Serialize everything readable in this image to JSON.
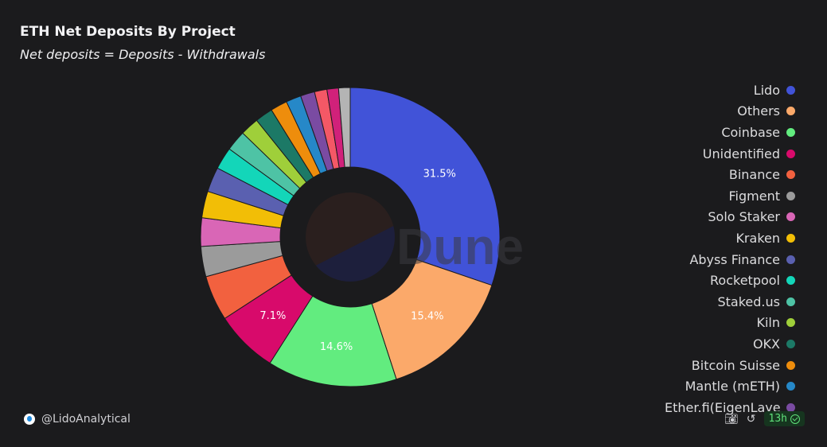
{
  "title": "ETH Net Deposits By Project",
  "subtitle": "Net deposits = Deposits - Withdrawals",
  "watermark": "Dune",
  "chart_data": {
    "type": "pie",
    "donut": true,
    "title": "ETH Net Deposits By Project",
    "subtitle": "Net deposits = Deposits - Withdrawals",
    "legend_position": "right",
    "slices": [
      {
        "label": "Lido",
        "value": 31.5,
        "color": "#4153d8",
        "show_label": true
      },
      {
        "label": "Others",
        "value": 15.4,
        "color": "#fba96a",
        "show_label": true
      },
      {
        "label": "Coinbase",
        "value": 14.6,
        "color": "#62ec7f",
        "show_label": true
      },
      {
        "label": "Unidentified",
        "value": 7.1,
        "color": "#d80a6b",
        "show_label": true
      },
      {
        "label": "Binance",
        "value": 5.1,
        "color": "#f2613f",
        "show_label": false
      },
      {
        "label": "Figment",
        "value": 3.4,
        "color": "#9b9b9b",
        "show_label": false
      },
      {
        "label": "Solo Staker",
        "value": 3.2,
        "color": "#d966b6",
        "show_label": false
      },
      {
        "label": "Kraken",
        "value": 3.0,
        "color": "#f2be06",
        "show_label": false
      },
      {
        "label": "Abyss Finance",
        "value": 2.8,
        "color": "#5a60b0",
        "show_label": false
      },
      {
        "label": "Rocketpool",
        "value": 2.5,
        "color": "#13d6b9",
        "show_label": false
      },
      {
        "label": "Staked.us",
        "value": 2.3,
        "color": "#4ec3a5",
        "show_label": false
      },
      {
        "label": "Kiln",
        "value": 2.1,
        "color": "#9fcf3a",
        "show_label": false
      },
      {
        "label": "OKX",
        "value": 2.0,
        "color": "#1c7966",
        "show_label": false
      },
      {
        "label": "Bitcoin Suisse",
        "value": 1.9,
        "color": "#ee8d0c",
        "show_label": false
      },
      {
        "label": "Mantle (mETH)",
        "value": 1.7,
        "color": "#2688c8",
        "show_label": false
      },
      {
        "label": "Ether.fi(EigenLayer)",
        "value": 1.6,
        "color": "#7a4ba2",
        "show_label": false
      },
      {
        "label": "",
        "value": 1.4,
        "color": "#f45866",
        "show_label": false
      },
      {
        "label": "",
        "value": 1.3,
        "color": "#d1217a",
        "show_label": false
      },
      {
        "label": "",
        "value": 1.3,
        "color": "#b4b4b4",
        "show_label": false
      }
    ]
  },
  "legend": [
    {
      "label": "Lido",
      "color": "#4153d8"
    },
    {
      "label": "Others",
      "color": "#fba96a"
    },
    {
      "label": "Coinbase",
      "color": "#62ec7f"
    },
    {
      "label": "Unidentified",
      "color": "#d80a6b"
    },
    {
      "label": "Binance",
      "color": "#f2613f"
    },
    {
      "label": "Figment",
      "color": "#9b9b9b"
    },
    {
      "label": "Solo Staker",
      "color": "#d966b6"
    },
    {
      "label": "Kraken",
      "color": "#f2be06"
    },
    {
      "label": "Abyss Finance",
      "color": "#5a60b0"
    },
    {
      "label": "Rocketpool",
      "color": "#13d6b9"
    },
    {
      "label": "Staked.us",
      "color": "#4ec3a5"
    },
    {
      "label": "Kiln",
      "color": "#9fcf3a"
    },
    {
      "label": "OKX",
      "color": "#1c7966"
    },
    {
      "label": "Bitcoin Suisse",
      "color": "#ee8d0c"
    },
    {
      "label": "Mantle (mETH)",
      "color": "#2688c8"
    },
    {
      "label": "Ether.fi(EigenLayer)",
      "color": "#7a4ba2"
    }
  ],
  "footer": {
    "author": "@LidoAnalytical",
    "refresh": "13h",
    "icons": [
      "camera-icon",
      "refresh-icon",
      "check-circle-icon"
    ]
  }
}
